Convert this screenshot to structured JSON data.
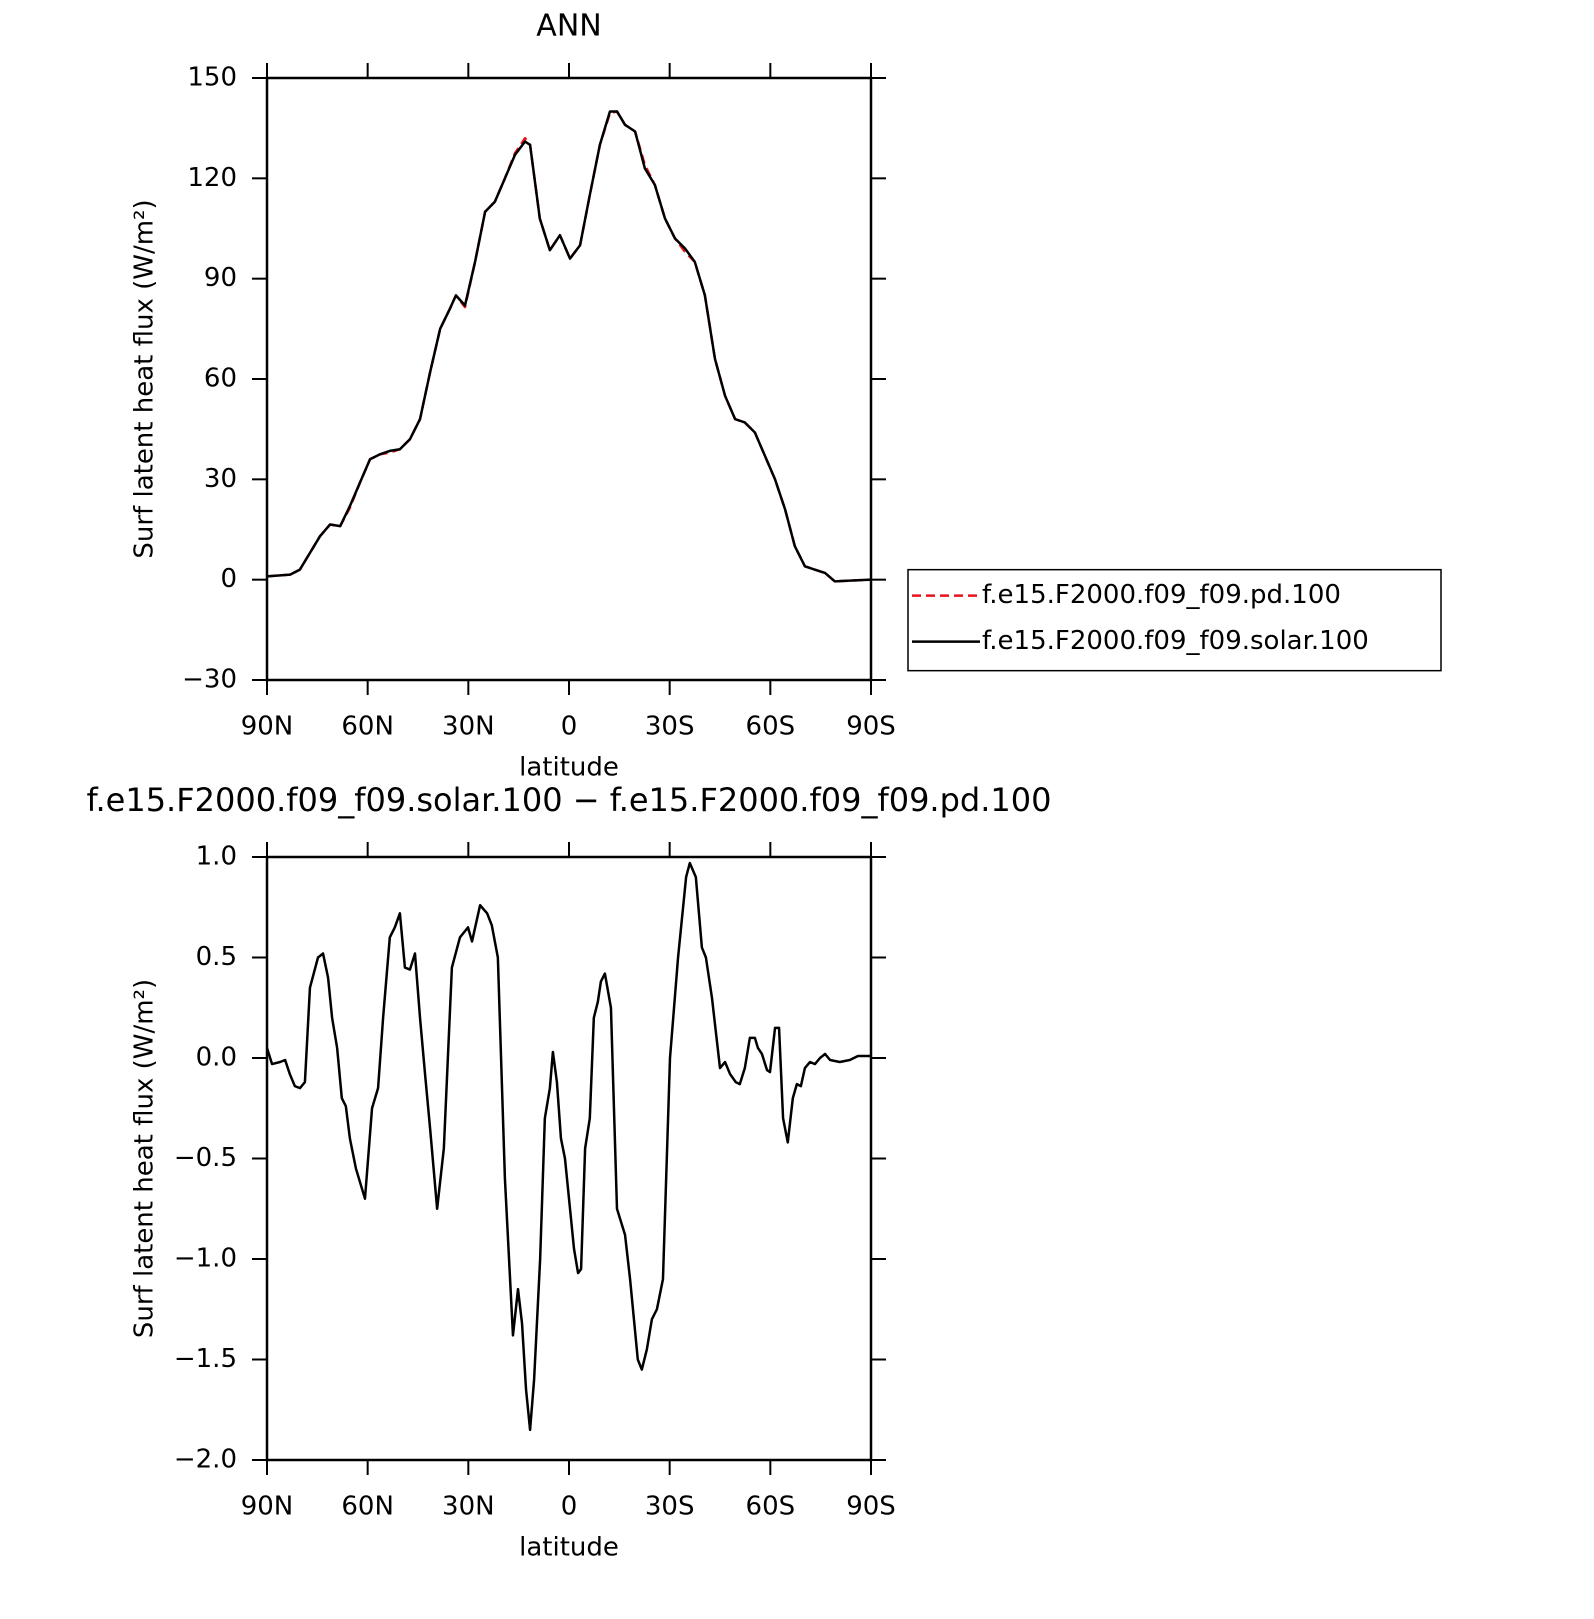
{
  "chart_data": [
    {
      "type": "line",
      "title": "ANN",
      "xlabel": "latitude",
      "ylabel": "Surf latent heat flux (W/m²)",
      "xlim": [
        90,
        -90
      ],
      "xticks": [
        {
          "value": 90,
          "label": "90N"
        },
        {
          "value": 60,
          "label": "60N"
        },
        {
          "value": 30,
          "label": "30N"
        },
        0,
        {
          "value": -30,
          "label": "30S"
        },
        {
          "value": -60,
          "label": "60S"
        },
        {
          "value": -90,
          "label": "90S"
        }
      ],
      "ylim": [
        -30,
        150
      ],
      "yticks": [
        {
          "value": -30,
          "label": "−30"
        },
        0,
        30,
        60,
        90,
        120,
        150
      ],
      "legend": "right",
      "x": [
        90,
        83.1,
        80.2,
        77.2,
        74.2,
        71.2,
        68.2,
        65.3,
        62.3,
        59.3,
        56.3,
        53.4,
        50.4,
        47.4,
        44.4,
        41.4,
        38.4,
        35.5,
        33.7,
        31.0,
        28.0,
        25.0,
        22.1,
        19.1,
        16.1,
        13.1,
        11.6,
        8.7,
        5.7,
        2.7,
        -0.3,
        -3.3,
        -6.2,
        -9.2,
        -12.2,
        -14.3,
        -16.7,
        -19.7,
        -22.6,
        -25.6,
        -28.6,
        -31.6,
        -34.6,
        -37.5,
        -40.5,
        -43.5,
        -46.5,
        -49.5,
        -52.4,
        -55.4,
        -58.4,
        -61.4,
        -64.4,
        -67.3,
        -70.3,
        -73.3,
        -76.3,
        -79.2,
        -83.7,
        -90
      ],
      "series": [
        {
          "name": "f.e15.F2000.f09_f09.pd.100",
          "color": "#e8141b",
          "linestyle": "dashed",
          "values": [
            1,
            1.5,
            3,
            8,
            13,
            16.5,
            16,
            21.5,
            29,
            36,
            37.5,
            38,
            39,
            42,
            48,
            62,
            75,
            81,
            85,
            81.5,
            95,
            110,
            113,
            120,
            127.5,
            132,
            130,
            108,
            98.5,
            103,
            96,
            100,
            115,
            130,
            139.5,
            140,
            136,
            134,
            124,
            118,
            108,
            102,
            98,
            95,
            85,
            66,
            55,
            48,
            47,
            44,
            37,
            30,
            21,
            10,
            4,
            3,
            2,
            -0.5,
            -0.3,
            0
          ]
        },
        {
          "name": "f.e15.F2000.f09_f09.solar.100",
          "color": "#000000",
          "linestyle": "solid",
          "values": [
            1,
            1.5,
            3,
            8,
            13,
            16.5,
            16,
            22,
            29,
            36,
            37.5,
            38.5,
            39,
            42,
            48,
            62,
            75,
            81,
            85,
            82,
            95,
            110,
            113,
            120,
            127,
            131,
            130,
            108,
            98.5,
            103,
            96,
            100,
            115,
            130,
            140,
            140,
            136,
            134,
            123,
            118,
            108,
            102,
            99,
            95,
            85,
            66,
            55,
            48,
            47,
            44,
            37,
            30,
            21,
            10,
            4,
            3,
            2,
            -0.5,
            -0.3,
            0
          ]
        }
      ]
    },
    {
      "type": "line",
      "title": "f.e15.F2000.f09_f09.solar.100 − f.e15.F2000.f09_f09.pd.100",
      "xlabel": "latitude",
      "ylabel": "Surf latent heat flux (W/m²)",
      "xlim": [
        90,
        -90
      ],
      "xticks": [
        {
          "value": 90,
          "label": "90N"
        },
        {
          "value": 60,
          "label": "60N"
        },
        {
          "value": 30,
          "label": "30N"
        },
        0,
        {
          "value": -30,
          "label": "30S"
        },
        {
          "value": -60,
          "label": "60S"
        },
        {
          "value": -90,
          "label": "90S"
        }
      ],
      "ylim": [
        -2,
        1
      ],
      "yticks": [
        {
          "value": -2,
          "label": "−2.0"
        },
        {
          "value": -1.5,
          "label": "−1.5"
        },
        {
          "value": -1,
          "label": "−1.0"
        },
        {
          "value": -0.5,
          "label": "−0.5"
        },
        {
          "value": 0,
          "label": "0.0"
        },
        0.5,
        {
          "value": 1,
          "label": "1.0"
        }
      ],
      "color": "#000000",
      "x": [
        90,
        88.5,
        86.1,
        84.6,
        83.2,
        81.7,
        80.2,
        78.7,
        77.2,
        74.8,
        73.3,
        71.8,
        70.6,
        69.1,
        67.7,
        66.5,
        65.3,
        63.5,
        60.8,
        58.7,
        56.9,
        55.4,
        53.4,
        51.9,
        50.4,
        48.9,
        47.4,
        45.9,
        44.4,
        42.9,
        41.4,
        39.3,
        37.3,
        34.9,
        32.5,
        30.1,
        28.9,
        26.5,
        24.4,
        23.0,
        21.2,
        19.1,
        16.7,
        15.2,
        14.0,
        12.8,
        11.6,
        10.4,
        8.6,
        7.2,
        5.7,
        4.8,
        3.6,
        2.4,
        1.2,
        -0.3,
        -1.5,
        -2.7,
        -3.6,
        -4.8,
        -6.2,
        -7.4,
        -8.6,
        -9.5,
        -10.7,
        -12.5,
        -14.3,
        -16.7,
        -18.2,
        -20.5,
        -21.7,
        -23.2,
        -24.7,
        -26.2,
        -28.0,
        -30.1,
        -32.5,
        -34.9,
        -36.0,
        -37.8,
        -39.6,
        -40.8,
        -42.6,
        -45.0,
        -46.5,
        -48.0,
        -49.7,
        -50.9,
        -52.4,
        -53.9,
        -55.4,
        -56.3,
        -57.5,
        -59.0,
        -59.9,
        -61.4,
        -62.6,
        -63.8,
        -65.2,
        -66.7,
        -67.9,
        -69.1,
        -70.3,
        -71.8,
        -73.3,
        -74.8,
        -76.3,
        -77.8,
        -80.7,
        -83.7,
        -86.1,
        -90
      ],
      "values": [
        0.05,
        -0.03,
        -0.02,
        -0.01,
        -0.08,
        -0.14,
        -0.15,
        -0.12,
        0.35,
        0.5,
        0.52,
        0.4,
        0.2,
        0.05,
        -0.2,
        -0.24,
        -0.4,
        -0.55,
        -0.7,
        -0.25,
        -0.15,
        0.2,
        0.6,
        0.65,
        0.72,
        0.45,
        0.44,
        0.52,
        0.2,
        -0.08,
        -0.35,
        -0.75,
        -0.45,
        0.45,
        0.6,
        0.65,
        0.58,
        0.76,
        0.72,
        0.66,
        0.5,
        -0.6,
        -1.38,
        -1.15,
        -1.32,
        -1.65,
        -1.85,
        -1.6,
        -1.0,
        -0.3,
        -0.15,
        0.03,
        -0.12,
        -0.4,
        -0.5,
        -0.75,
        -0.95,
        -1.07,
        -1.05,
        -0.45,
        -0.3,
        0.2,
        0.28,
        0.38,
        0.42,
        0.25,
        -0.75,
        -0.88,
        -1.1,
        -1.5,
        -1.55,
        -1.45,
        -1.3,
        -1.25,
        -1.1,
        0.0,
        0.5,
        0.9,
        0.97,
        0.9,
        0.55,
        0.5,
        0.3,
        -0.05,
        -0.02,
        -0.08,
        -0.12,
        -0.13,
        -0.05,
        0.1,
        0.1,
        0.05,
        0.02,
        -0.06,
        -0.07,
        0.15,
        0.15,
        -0.3,
        -0.42,
        -0.2,
        -0.13,
        -0.14,
        -0.05,
        -0.02,
        -0.03,
        0.0,
        0.02,
        -0.01,
        -0.02,
        -0.01,
        0.01,
        0.01
      ]
    }
  ]
}
